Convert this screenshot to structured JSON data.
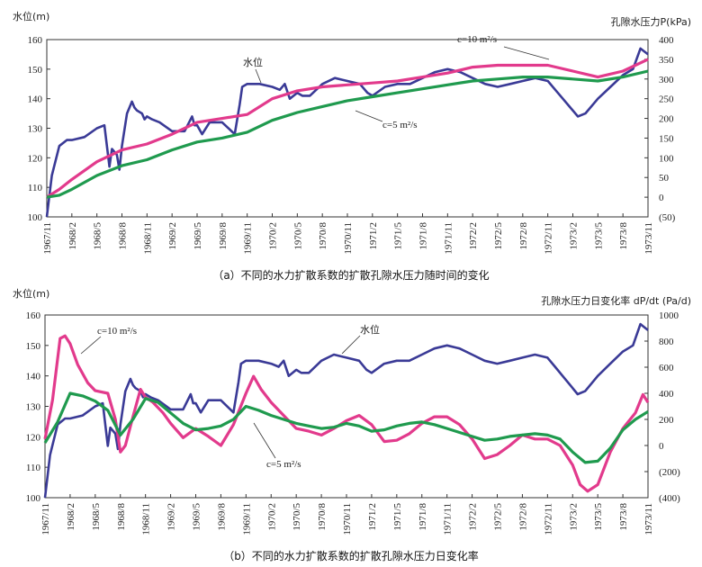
{
  "chart_data": [
    {
      "type": "line",
      "caption": "（a）不同的水力扩散系数的扩散孔隙水压力随时间的变化",
      "left_axis_label": "水位(m)",
      "right_axis_label": "孔隙水压力P(kPa)",
      "left_ylim": [
        100,
        160
      ],
      "left_ticks": [
        "100",
        "110",
        "120",
        "130",
        "140",
        "150",
        "160"
      ],
      "right_ylim": [
        -50,
        400
      ],
      "right_ticks": [
        "(50)",
        "0",
        "50",
        "100",
        "150",
        "200",
        "250",
        "300",
        "350",
        "400"
      ],
      "x_categories": [
        "1967/11",
        "1968/2",
        "1968/5",
        "1968/8",
        "1968/11",
        "1969/2",
        "1969/5",
        "1969/8",
        "1969/11",
        "1970/2",
        "1970/5",
        "1970/8",
        "1970/11",
        "1971/2",
        "1971/5",
        "1971/8",
        "1971/11",
        "1972/2",
        "1972/5",
        "1972/8",
        "1972/11",
        "1973/2",
        "1973/5",
        "1973/8",
        "1973/11"
      ],
      "annotations": [
        "水位",
        "c=10 m²/s",
        "c=5 m²/s"
      ],
      "series": [
        {
          "name": "水位",
          "axis": "left",
          "color": "#3a3a96",
          "x": [
            0,
            0.2,
            0.5,
            0.8,
            1,
            1.5,
            2,
            2.3,
            2.5,
            2.6,
            2.8,
            2.9,
            3,
            3.2,
            3.4,
            3.5,
            3.6,
            3.8,
            3.9,
            4,
            4.2,
            4.5,
            5,
            5.5,
            5.8,
            5.9,
            6,
            6.2,
            6.5,
            7,
            7.5,
            7.7,
            7.8,
            8,
            8.5,
            9,
            9.3,
            9.5,
            9.7,
            10,
            10.2,
            10.5,
            11,
            11.5,
            12,
            12.5,
            12.8,
            13,
            13.5,
            14,
            14.5,
            15,
            15.5,
            16,
            16.5,
            17,
            17.5,
            18,
            18.5,
            19,
            19.5,
            20,
            20.3,
            20.6,
            20.9,
            21.2,
            21.5,
            22,
            22.5,
            23,
            23.4,
            23.7,
            24
          ],
          "values": [
            100,
            114,
            124,
            126,
            126,
            127,
            130,
            131,
            117,
            123,
            121,
            116,
            124,
            135,
            139,
            137,
            136,
            135,
            133,
            134,
            133,
            132,
            129,
            129,
            134,
            131,
            131,
            128,
            132,
            132,
            128,
            138,
            144,
            145,
            145,
            144,
            143,
            145,
            140,
            142,
            141,
            141,
            145,
            147,
            146,
            145,
            142,
            141,
            144,
            145,
            145,
            147,
            149,
            150,
            149,
            147,
            145,
            144,
            145,
            146,
            147,
            146,
            143,
            140,
            137,
            134,
            135,
            140,
            144,
            148,
            150,
            157,
            155
          ]
        },
        {
          "name": "c=10 m²/s",
          "axis": "right",
          "color": "#e23a8c",
          "x": [
            0,
            0.5,
            1,
            2,
            3,
            4,
            5,
            6,
            7,
            8,
            9,
            10,
            11,
            12,
            13,
            14,
            15,
            16,
            17,
            18,
            19,
            20,
            21,
            22,
            23,
            24
          ],
          "values": [
            0,
            20,
            45,
            90,
            120,
            135,
            160,
            190,
            200,
            210,
            250,
            270,
            280,
            285,
            290,
            295,
            305,
            315,
            330,
            335,
            335,
            335,
            320,
            305,
            320,
            350
          ]
        },
        {
          "name": "c=5 m²/s",
          "axis": "right",
          "color": "#1f9a4e",
          "x": [
            0,
            0.5,
            1,
            2,
            3,
            4,
            5,
            6,
            7,
            8,
            9,
            10,
            11,
            12,
            13,
            14,
            15,
            16,
            17,
            18,
            19,
            20,
            21,
            22,
            23,
            24
          ],
          "values": [
            0,
            5,
            20,
            55,
            80,
            95,
            120,
            140,
            150,
            165,
            195,
            215,
            230,
            245,
            255,
            265,
            275,
            285,
            295,
            300,
            305,
            305,
            300,
            295,
            305,
            320
          ]
        }
      ]
    },
    {
      "type": "line",
      "caption": "（b）不同的水力扩散系数的扩散孔隙水压力日变化率",
      "left_axis_label": "水位(m)",
      "right_axis_label": "孔隙水压力日变化率 dP/dt (Pa/d)",
      "left_ylim": [
        100,
        160
      ],
      "left_ticks": [
        "100",
        "110",
        "120",
        "130",
        "140",
        "150",
        "160"
      ],
      "right_ylim": [
        -400,
        1000
      ],
      "right_ticks": [
        "(400)",
        "(200)",
        "0",
        "200",
        "400",
        "600",
        "800",
        "1000"
      ],
      "x_categories": [
        "1967/11",
        "1968/2",
        "1968/5",
        "1968/8",
        "1968/11",
        "1969/2",
        "1969/5",
        "1969/8",
        "1969/11",
        "1970/2",
        "1970/5",
        "1970/8",
        "1970/11",
        "1971/2",
        "1971/5",
        "1971/8",
        "1971/11",
        "1972/2",
        "1972/5",
        "1972/8",
        "1972/11",
        "1973/2",
        "1973/5",
        "1973/8",
        "1973/11"
      ],
      "annotations": [
        "c=10 m²/s",
        "水位",
        "c=5 m²/s"
      ],
      "series": [
        {
          "name": "水位",
          "axis": "left",
          "color": "#3a3a96",
          "x": [
            0,
            0.2,
            0.5,
            0.8,
            1,
            1.5,
            2,
            2.3,
            2.5,
            2.6,
            2.8,
            2.9,
            3,
            3.2,
            3.4,
            3.5,
            3.6,
            3.8,
            3.9,
            4,
            4.2,
            4.5,
            5,
            5.5,
            5.8,
            5.9,
            6,
            6.2,
            6.5,
            7,
            7.5,
            7.7,
            7.8,
            8,
            8.5,
            9,
            9.3,
            9.5,
            9.7,
            10,
            10.2,
            10.5,
            11,
            11.5,
            12,
            12.5,
            12.8,
            13,
            13.5,
            14,
            14.5,
            15,
            15.5,
            16,
            16.5,
            17,
            17.5,
            18,
            18.5,
            19,
            19.5,
            20,
            20.3,
            20.6,
            20.9,
            21.2,
            21.5,
            22,
            22.5,
            23,
            23.4,
            23.7,
            24
          ],
          "values": [
            100,
            114,
            124,
            126,
            126,
            127,
            130,
            131,
            117,
            123,
            121,
            116,
            124,
            135,
            139,
            137,
            136,
            135,
            133,
            134,
            133,
            132,
            129,
            129,
            134,
            131,
            131,
            128,
            132,
            132,
            128,
            138,
            144,
            145,
            145,
            144,
            143,
            145,
            140,
            142,
            141,
            141,
            145,
            147,
            146,
            145,
            142,
            141,
            144,
            145,
            145,
            147,
            149,
            150,
            149,
            147,
            145,
            144,
            145,
            146,
            147,
            146,
            143,
            140,
            137,
            134,
            135,
            140,
            144,
            148,
            150,
            157,
            155
          ]
        },
        {
          "name": "c=10 m²/s",
          "axis": "right",
          "color": "#e23a8c",
          "x": [
            0,
            0.3,
            0.6,
            0.8,
            1,
            1.3,
            1.7,
            2,
            2.5,
            2.8,
            3,
            3.2,
            3.5,
            3.8,
            4,
            4.3,
            4.7,
            5,
            5.5,
            6,
            6.5,
            7,
            7.5,
            8,
            8.3,
            8.6,
            9,
            9.5,
            10,
            10.5,
            11,
            11.5,
            12,
            12.5,
            13,
            13.5,
            14,
            14.5,
            15,
            15.5,
            16,
            16.5,
            17,
            17.5,
            18,
            18.5,
            19,
            19.5,
            20,
            20.5,
            21,
            21.3,
            21.6,
            22,
            22.5,
            23,
            23.5,
            23.8,
            24
          ],
          "values": [
            50,
            350,
            820,
            840,
            780,
            620,
            480,
            420,
            400,
            200,
            -50,
            0,
            220,
            430,
            370,
            330,
            250,
            170,
            60,
            130,
            70,
            0,
            160,
            400,
            530,
            430,
            330,
            230,
            130,
            110,
            80,
            130,
            190,
            230,
            160,
            30,
            40,
            90,
            170,
            220,
            220,
            160,
            50,
            -100,
            -70,
            0,
            80,
            50,
            50,
            0,
            -150,
            -300,
            -350,
            -300,
            -50,
            130,
            250,
            390,
            330
          ]
        },
        {
          "name": "c=5 m²/s",
          "axis": "right",
          "color": "#1f9a4e",
          "x": [
            0,
            0.5,
            1,
            1.5,
            2,
            2.5,
            3,
            3.5,
            4,
            4.5,
            5,
            5.5,
            6,
            6.5,
            7,
            7.5,
            8,
            8.5,
            9,
            9.5,
            10,
            10.5,
            11,
            11.5,
            12,
            12.5,
            13,
            13.5,
            14,
            14.5,
            15,
            15.5,
            16,
            16.5,
            17,
            17.5,
            18,
            18.5,
            19,
            19.5,
            20,
            20.5,
            21,
            21.5,
            22,
            22.5,
            23,
            23.5,
            24
          ],
          "values": [
            20,
            180,
            400,
            380,
            340,
            270,
            80,
            200,
            360,
            330,
            250,
            170,
            120,
            130,
            150,
            200,
            300,
            270,
            230,
            200,
            170,
            150,
            130,
            140,
            170,
            150,
            110,
            120,
            150,
            170,
            180,
            160,
            130,
            100,
            70,
            40,
            50,
            70,
            80,
            90,
            80,
            50,
            -50,
            -130,
            -120,
            -20,
            120,
            200,
            260
          ]
        }
      ]
    }
  ]
}
